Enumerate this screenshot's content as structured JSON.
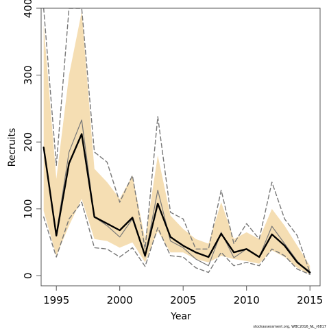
{
  "chart_data": {
    "type": "line",
    "title": "",
    "xlabel": "Year",
    "ylabel": "Recruits",
    "xlim": [
      1993.8,
      2015.8
    ],
    "ylim": [
      -15,
      400
    ],
    "xticks": [
      1995,
      2000,
      2005,
      2010,
      2015
    ],
    "yticks": [
      0,
      100,
      200,
      300,
      400
    ],
    "grid": false,
    "legend": "none",
    "x": [
      1994,
      1995,
      1996,
      1997,
      1998,
      1999,
      2000,
      2001,
      2002,
      2003,
      2004,
      2005,
      2006,
      2007,
      2008,
      2009,
      2010,
      2011,
      2012,
      2013,
      2014,
      2015
    ],
    "band": {
      "lower": [
        97,
        30,
        75,
        115,
        55,
        52,
        42,
        50,
        20,
        67,
        35,
        35,
        25,
        20,
        30,
        25,
        22,
        18,
        38,
        28,
        12,
        2
      ],
      "upper": [
        375,
        145,
        300,
        395,
        160,
        140,
        115,
        150,
        55,
        180,
        90,
        70,
        55,
        48,
        110,
        55,
        65,
        55,
        100,
        75,
        45,
        15
      ],
      "color": "#f5deb3"
    },
    "series": [
      {
        "values": [
          192,
          60,
          168,
          212,
          88,
          78,
          68,
          87,
          30,
          108,
          58,
          45,
          35,
          28,
          63,
          35,
          40,
          28,
          62,
          45,
          20,
          5
        ],
        "color": "#000000",
        "style": "solid-thick"
      },
      {
        "values": [
          192,
          62,
          185,
          233,
          88,
          75,
          58,
          85,
          28,
          128,
          52,
          42,
          25,
          15,
          65,
          27,
          40,
          28,
          74,
          48,
          22,
          3
        ],
        "color": "#777777",
        "style": "solid-thin"
      },
      {
        "values": [
          400,
          165,
          400,
          400,
          185,
          170,
          110,
          150,
          40,
          238,
          95,
          85,
          40,
          40,
          128,
          48,
          78,
          55,
          140,
          85,
          60,
          5
        ],
        "color": "#777777",
        "style": "dashed"
      },
      {
        "values": [
          88,
          28,
          85,
          110,
          42,
          40,
          28,
          42,
          14,
          72,
          30,
          28,
          12,
          5,
          35,
          15,
          20,
          15,
          40,
          30,
          10,
          2
        ],
        "color": "#777777",
        "style": "dashed"
      }
    ]
  },
  "footer": {
    "note": "stockassessment.org, WBC2016_NL_r6817"
  }
}
